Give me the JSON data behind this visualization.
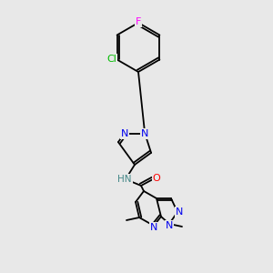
{
  "background_color": "#e8e8e8",
  "bond_color": "#000000",
  "atom_colors": {
    "N": "#0000ee",
    "O": "#ff0000",
    "F": "#ff00ff",
    "Cl": "#00bb00",
    "H": "#448888",
    "C": "#000000"
  },
  "font_size": 8.0
}
